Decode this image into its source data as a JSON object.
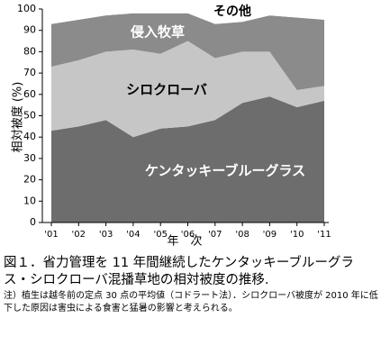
{
  "chart_data": {
    "type": "stacked-area",
    "title": "図１．省力管理を 11 年間継続したケンタッキーブルーグラス・シロクローバ混播草地の相対被度の推移.",
    "note": "注）植生は越冬前の定点 30 点の平均値（コドラート法）．シロクローバ被度が 2010 年に低下した原因は害虫による食害と猛暑の影響と考えられる。",
    "xlabel": "年　次",
    "ylabel": "相対被度 (%)",
    "categories": [
      "'01",
      "'02",
      "'03",
      "'04",
      "'05",
      "'06",
      "'07",
      "'08",
      "'09",
      "'10",
      "'11"
    ],
    "series": [
      {
        "name": "ケンタッキーブルーグラス",
        "color": "#6d6d6d",
        "values": [
          43,
          45,
          48,
          40,
          44,
          45,
          48,
          56,
          59,
          54,
          57
        ]
      },
      {
        "name": "シロクローバ",
        "color": "#c6c6c6",
        "values": [
          30,
          31,
          32,
          41,
          35,
          40,
          29,
          24,
          21,
          8,
          7
        ]
      },
      {
        "name": "侵入牧草",
        "color": "#8b8b8b",
        "values": [
          20,
          19,
          17,
          17,
          19,
          13,
          16,
          14,
          17,
          34,
          31
        ]
      },
      {
        "name": "その他",
        "color": "#ffffff",
        "values": [
          7,
          5,
          3,
          2,
          2,
          2,
          7,
          6,
          3,
          4,
          5
        ]
      }
    ],
    "ylim": [
      0,
      100
    ],
    "yticks": [
      0,
      10,
      20,
      30,
      40,
      50,
      60,
      70,
      80,
      90,
      100
    ]
  }
}
